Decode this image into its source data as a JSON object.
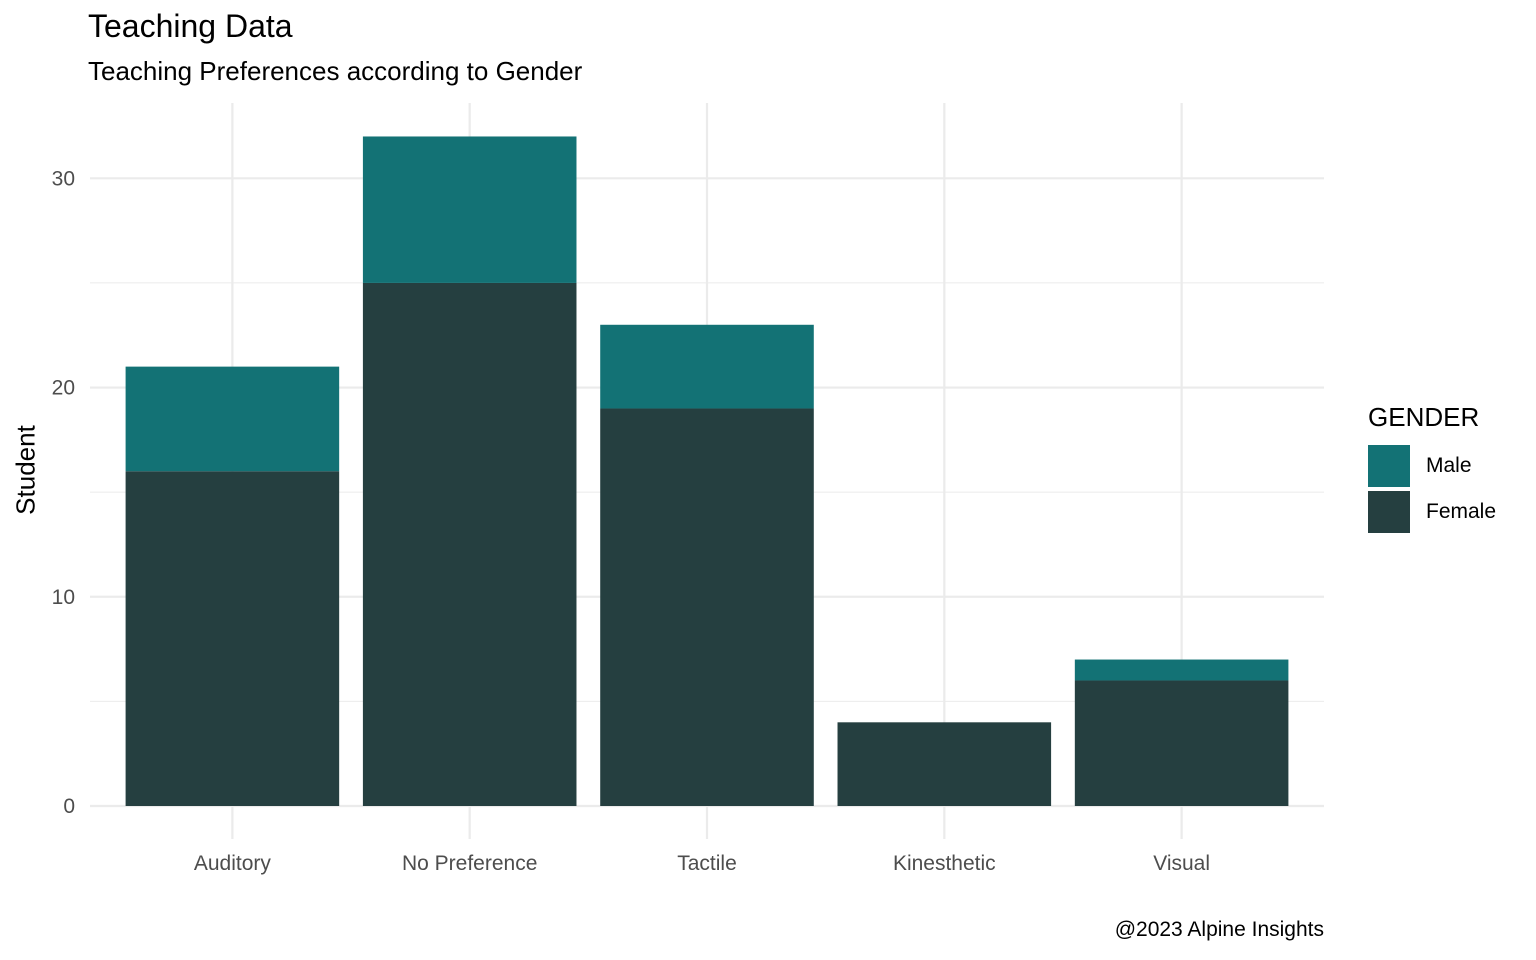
{
  "title": "Teaching Data",
  "subtitle": "Teaching Preferences according to Gender",
  "caption": "@2023 Alpine Insights",
  "colors": {
    "male": "#137275",
    "female": "#253f40",
    "grid": "#ebebeb",
    "tick_text": "#4d4d4d"
  },
  "legend": {
    "title": "GENDER",
    "items": [
      {
        "label": "Male",
        "color": "#137275"
      },
      {
        "label": "Female",
        "color": "#253f40"
      }
    ]
  },
  "chart_data": {
    "type": "bar",
    "stacked": true,
    "title": "Teaching Data",
    "subtitle": "Teaching Preferences according to Gender",
    "xlabel": "",
    "ylabel": "Student",
    "categories": [
      "Auditory",
      "No Preference",
      "Tactile",
      "Kinesthetic",
      "Visual"
    ],
    "series": [
      {
        "name": "Female",
        "values": [
          16,
          25,
          19,
          4,
          6
        ]
      },
      {
        "name": "Male",
        "values": [
          5,
          7,
          4,
          0,
          1
        ]
      }
    ],
    "ylim": [
      0,
      33.6
    ],
    "yticks": [
      0,
      10,
      20,
      30
    ],
    "grid": true,
    "legend_position": "right"
  }
}
